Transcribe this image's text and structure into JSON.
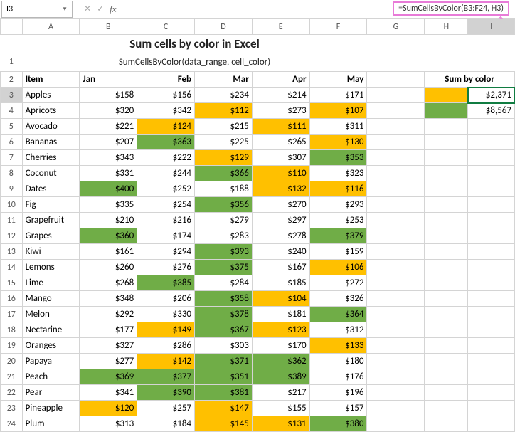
{
  "namebox": "I3",
  "formula": "=SumCellsByColor(B3:F24, H3)",
  "title": "Sum cells by color in Excel",
  "subtitle": "SumCellsByColor(data_range, cell_color)",
  "cols": [
    "A",
    "B",
    "C",
    "D",
    "E",
    "F",
    "G",
    "H",
    "I"
  ],
  "active_col": "I",
  "active_row": "3",
  "headers": {
    "item": "Item",
    "jan": "Jan",
    "feb": "Feb",
    "mar": "Mar",
    "apr": "Apr",
    "may": "May",
    "sum": "Sum by color"
  },
  "sum_results": {
    "orange": "$2,371",
    "green": "$8,567"
  },
  "colors": {
    "green": "#70ad47",
    "orange": "#ffc000",
    "sel": "#107c41",
    "formula_box": "#e87bd8"
  },
  "rows": [
    {
      "n": "3",
      "item": "Apples",
      "v": [
        {
          "t": "$158"
        },
        {
          "t": "$156"
        },
        {
          "t": "$234"
        },
        {
          "t": "$214"
        },
        {
          "t": "$171"
        }
      ]
    },
    {
      "n": "4",
      "item": "Apricots",
      "v": [
        {
          "t": "$320"
        },
        {
          "t": "$342"
        },
        {
          "t": "$112",
          "c": "orange"
        },
        {
          "t": "$273"
        },
        {
          "t": "$107",
          "c": "orange"
        }
      ]
    },
    {
      "n": "5",
      "item": "Avocado",
      "v": [
        {
          "t": "$221"
        },
        {
          "t": "$124",
          "c": "orange"
        },
        {
          "t": "$215"
        },
        {
          "t": "$111",
          "c": "orange"
        },
        {
          "t": "$311"
        }
      ]
    },
    {
      "n": "6",
      "item": "Bananas",
      "v": [
        {
          "t": "$207"
        },
        {
          "t": "$363",
          "c": "green"
        },
        {
          "t": "$225"
        },
        {
          "t": "$265"
        },
        {
          "t": "$130",
          "c": "orange"
        }
      ]
    },
    {
      "n": "7",
      "item": "Cherries",
      "v": [
        {
          "t": "$343"
        },
        {
          "t": "$222"
        },
        {
          "t": "$129",
          "c": "orange"
        },
        {
          "t": "$307"
        },
        {
          "t": "$353",
          "c": "green"
        }
      ]
    },
    {
      "n": "8",
      "item": "Coconut",
      "v": [
        {
          "t": "$331"
        },
        {
          "t": "$244"
        },
        {
          "t": "$366",
          "c": "green"
        },
        {
          "t": "$110",
          "c": "orange"
        },
        {
          "t": "$323"
        }
      ]
    },
    {
      "n": "9",
      "item": "Dates",
      "v": [
        {
          "t": "$400",
          "c": "green"
        },
        {
          "t": "$252"
        },
        {
          "t": "$188"
        },
        {
          "t": "$132",
          "c": "orange"
        },
        {
          "t": "$116",
          "c": "orange"
        }
      ]
    },
    {
      "n": "10",
      "item": "Fig",
      "v": [
        {
          "t": "$335"
        },
        {
          "t": "$254"
        },
        {
          "t": "$356",
          "c": "green"
        },
        {
          "t": "$270"
        },
        {
          "t": "$293"
        }
      ]
    },
    {
      "n": "11",
      "item": "Grapefruit",
      "v": [
        {
          "t": "$210"
        },
        {
          "t": "$216"
        },
        {
          "t": "$279"
        },
        {
          "t": "$297"
        },
        {
          "t": "$253"
        }
      ]
    },
    {
      "n": "12",
      "item": "Grapes",
      "v": [
        {
          "t": "$360",
          "c": "green"
        },
        {
          "t": "$174"
        },
        {
          "t": "$283"
        },
        {
          "t": "$278"
        },
        {
          "t": "$379",
          "c": "green"
        }
      ]
    },
    {
      "n": "13",
      "item": "Kiwi",
      "v": [
        {
          "t": "$161"
        },
        {
          "t": "$294"
        },
        {
          "t": "$393",
          "c": "green"
        },
        {
          "t": "$240"
        },
        {
          "t": "$159"
        }
      ]
    },
    {
      "n": "14",
      "item": "Lemons",
      "v": [
        {
          "t": "$260"
        },
        {
          "t": "$276"
        },
        {
          "t": "$375",
          "c": "green"
        },
        {
          "t": "$167"
        },
        {
          "t": "$106",
          "c": "orange"
        }
      ]
    },
    {
      "n": "15",
      "item": "Lime",
      "v": [
        {
          "t": "$268"
        },
        {
          "t": "$385",
          "c": "green"
        },
        {
          "t": "$284"
        },
        {
          "t": "$185"
        },
        {
          "t": "$272"
        }
      ]
    },
    {
      "n": "16",
      "item": "Mango",
      "v": [
        {
          "t": "$348"
        },
        {
          "t": "$206"
        },
        {
          "t": "$358",
          "c": "green"
        },
        {
          "t": "$104",
          "c": "orange"
        },
        {
          "t": "$326"
        }
      ]
    },
    {
      "n": "17",
      "item": "Melon",
      "v": [
        {
          "t": "$292"
        },
        {
          "t": "$330"
        },
        {
          "t": "$378",
          "c": "green"
        },
        {
          "t": "$181"
        },
        {
          "t": "$364",
          "c": "green"
        }
      ]
    },
    {
      "n": "18",
      "item": "Nectarine",
      "v": [
        {
          "t": "$177"
        },
        {
          "t": "$149",
          "c": "orange"
        },
        {
          "t": "$367",
          "c": "green"
        },
        {
          "t": "$123",
          "c": "orange"
        },
        {
          "t": "$312"
        }
      ]
    },
    {
      "n": "19",
      "item": "Oranges",
      "v": [
        {
          "t": "$327"
        },
        {
          "t": "$286"
        },
        {
          "t": "$303"
        },
        {
          "t": "$170"
        },
        {
          "t": "$133",
          "c": "orange"
        }
      ]
    },
    {
      "n": "20",
      "item": "Papaya",
      "v": [
        {
          "t": "$277"
        },
        {
          "t": "$142",
          "c": "orange"
        },
        {
          "t": "$371",
          "c": "green"
        },
        {
          "t": "$362",
          "c": "green"
        },
        {
          "t": "$180"
        }
      ]
    },
    {
      "n": "21",
      "item": "Peach",
      "v": [
        {
          "t": "$369",
          "c": "green"
        },
        {
          "t": "$377",
          "c": "green"
        },
        {
          "t": "$351",
          "c": "green"
        },
        {
          "t": "$389",
          "c": "green"
        },
        {
          "t": "$176"
        }
      ]
    },
    {
      "n": "22",
      "item": "Pear",
      "v": [
        {
          "t": "$341"
        },
        {
          "t": "$390",
          "c": "green"
        },
        {
          "t": "$381",
          "c": "green"
        },
        {
          "t": "$217"
        },
        {
          "t": "$196"
        }
      ]
    },
    {
      "n": "23",
      "item": "Pineapple",
      "v": [
        {
          "t": "$120",
          "c": "orange"
        },
        {
          "t": "$257"
        },
        {
          "t": "$147",
          "c": "orange"
        },
        {
          "t": "$155"
        },
        {
          "t": "$157"
        }
      ]
    },
    {
      "n": "24",
      "item": "Plum",
      "v": [
        {
          "t": "$313"
        },
        {
          "t": "$184"
        },
        {
          "t": "$145",
          "c": "orange"
        },
        {
          "t": "$131",
          "c": "orange"
        },
        {
          "t": "$380",
          "c": "green"
        }
      ]
    }
  ]
}
